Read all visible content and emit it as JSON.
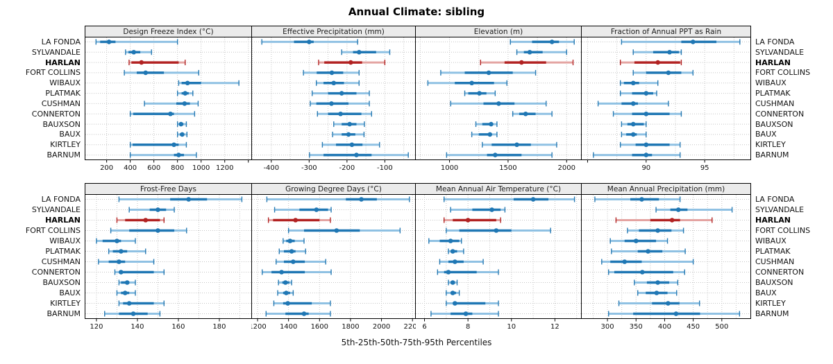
{
  "title": "Annual Climate: sibling",
  "caption": "5th-25th-50th-75th-95th Percentiles",
  "percentiles": [
    5,
    25,
    50,
    75,
    95
  ],
  "stations": [
    "LA FONDA",
    "SYLVANDALE",
    "HARLAN",
    "FORT COLLINS",
    "WIBAUX",
    "PLATMAK",
    "CUSHMAN",
    "CONNERTON",
    "BAUXSON",
    "BAUX",
    "KIRTLEY",
    "BARNUM"
  ],
  "highlight_station": "HARLAN",
  "colors": {
    "blue_dark": "#1f77b4",
    "blue_cap": "#2679b2",
    "blue_light": "#8fc1e3",
    "red_dark": "#b22222",
    "red_cap": "#b22222",
    "red_light": "#e4a3a1",
    "grid": "#c4c4c4",
    "header_bg": "#ebebeb",
    "border": "#000000",
    "text": "#111111"
  },
  "chart_data": [
    {
      "type": "percentile-dotplot",
      "panel": "Design Freeze Index (°C)",
      "xlim": [
        20,
        1425
      ],
      "ticks": [
        200,
        400,
        600,
        800,
        1000,
        1200
      ],
      "tick_extra": [
        1400
      ],
      "grid": [
        200,
        400,
        600,
        800,
        1000,
        1200,
        1400
      ],
      "values": [
        [
          110,
          145,
          220,
          275,
          800
        ],
        [
          360,
          385,
          430,
          485,
          580
        ],
        [
          390,
          410,
          495,
          810,
          865
        ],
        [
          350,
          455,
          530,
          685,
          980
        ],
        [
          810,
          835,
          885,
          1000,
          1320
        ],
        [
          800,
          835,
          865,
          895,
          930
        ],
        [
          520,
          790,
          860,
          905,
          975
        ],
        [
          400,
          425,
          740,
          770,
          945
        ],
        [
          800,
          815,
          830,
          850,
          875
        ],
        [
          800,
          820,
          840,
          855,
          880
        ],
        [
          400,
          420,
          770,
          810,
          875
        ],
        [
          400,
          770,
          810,
          855,
          960
        ]
      ]
    },
    {
      "type": "percentile-dotplot",
      "panel": "Effective Precipitation (mm)",
      "xlim": [
        -451,
        -20
      ],
      "ticks": [
        -400,
        -300,
        -200,
        -100
      ],
      "tick_extra": [],
      "grid": [
        -450,
        -400,
        -350,
        -300,
        -250,
        -200,
        -150,
        -100,
        -50
      ],
      "values": [
        [
          -425,
          -340,
          -300,
          -288,
          -172
        ],
        [
          -214,
          -184,
          -168,
          -123,
          -87
        ],
        [
          -275,
          -260,
          -190,
          -160,
          -100
        ],
        [
          -315,
          -280,
          -240,
          -210,
          -168
        ],
        [
          -281,
          -262,
          -235,
          -208,
          -168
        ],
        [
          -292,
          -250,
          -214,
          -175,
          -141
        ],
        [
          -297,
          -281,
          -241,
          -196,
          -141
        ],
        [
          -278,
          -250,
          -217,
          -162,
          -135
        ],
        [
          -235,
          -214,
          -193,
          -175,
          -154
        ],
        [
          -238,
          -214,
          -196,
          -178,
          -155
        ],
        [
          -265,
          -229,
          -187,
          -159,
          -114
        ],
        [
          -299,
          -262,
          -175,
          -135,
          -38
        ]
      ]
    },
    {
      "type": "percentile-dotplot",
      "panel": "Elevation (m)",
      "xlim": [
        712,
        2123
      ],
      "ticks": [
        1000,
        1500,
        2000
      ],
      "tick_extra": [],
      "grid": [
        750,
        1000,
        1250,
        1500,
        1750,
        2000
      ],
      "values": [
        [
          1520,
          1705,
          1875,
          1935,
          2065
        ],
        [
          1575,
          1635,
          1685,
          1795,
          2000
        ],
        [
          1265,
          1470,
          1615,
          1825,
          2055
        ],
        [
          925,
          1130,
          1335,
          1540,
          1735
        ],
        [
          815,
          1045,
          1190,
          1380,
          1490
        ],
        [
          1130,
          1160,
          1255,
          1315,
          1390
        ],
        [
          1010,
          1290,
          1420,
          1555,
          1825
        ],
        [
          1540,
          1595,
          1650,
          1735,
          1875
        ],
        [
          1225,
          1280,
          1355,
          1370,
          1405
        ],
        [
          1190,
          1250,
          1345,
          1360,
          1405
        ],
        [
          1280,
          1360,
          1575,
          1695,
          1915
        ],
        [
          975,
          1320,
          1390,
          1615,
          1875
        ]
      ]
    },
    {
      "type": "percentile-dotplot",
      "panel": "Fraction of Annual PPT as Rain",
      "xlim": [
        84.5,
        98.9
      ],
      "ticks": [
        90,
        95
      ],
      "tick_extra": [
        85
      ],
      "grid": [
        85,
        87.5,
        90,
        92.5,
        95,
        97.5
      ],
      "values": [
        [
          87.9,
          93.0,
          94.0,
          96.0,
          98.0
        ],
        [
          88.9,
          90.6,
          92.0,
          92.8,
          93.0
        ],
        [
          87.8,
          89.0,
          91.0,
          92.9,
          93.0
        ],
        [
          88.9,
          90.0,
          91.9,
          93.0,
          94.0
        ],
        [
          87.8,
          88.1,
          88.9,
          89.4,
          91.0
        ],
        [
          87.8,
          88.8,
          90.0,
          90.6,
          90.9
        ],
        [
          85.9,
          87.9,
          88.9,
          89.3,
          91.9
        ],
        [
          87.2,
          88.8,
          90.0,
          92.0,
          93.0
        ],
        [
          87.9,
          88.4,
          88.9,
          89.8,
          90.0
        ],
        [
          87.9,
          88.3,
          88.9,
          89.2,
          90.0
        ],
        [
          87.8,
          89.1,
          90.0,
          92.0,
          92.9
        ],
        [
          85.5,
          88.8,
          90.0,
          90.5,
          92.9
        ]
      ]
    },
    {
      "type": "percentile-dotplot",
      "panel": "Frost-Free Days",
      "xlim": [
        114.6,
        195.6
      ],
      "ticks": [
        120,
        140,
        160,
        180
      ],
      "tick_extra": [],
      "grid": [
        120,
        130,
        140,
        150,
        160,
        170,
        180,
        190
      ],
      "values": [
        [
          131,
          156,
          165,
          174,
          191
        ],
        [
          136,
          146,
          150,
          154,
          158
        ],
        [
          130,
          134,
          144,
          151,
          153
        ],
        [
          127,
          136,
          150,
          158,
          164
        ],
        [
          120,
          123,
          130,
          132,
          139
        ],
        [
          126,
          128,
          132,
          135,
          144
        ],
        [
          121,
          126,
          131,
          134,
          148
        ],
        [
          129,
          131,
          132,
          148,
          153
        ],
        [
          131,
          132,
          135,
          136,
          139
        ],
        [
          130,
          132,
          134,
          136,
          139
        ],
        [
          131,
          133,
          136,
          148,
          153
        ],
        [
          124,
          131,
          138,
          145,
          151
        ]
      ]
    },
    {
      "type": "percentile-dotplot",
      "panel": "Growing Degree Days (°C)",
      "xlim": [
        1164,
        2217
      ],
      "ticks": [
        1200,
        1400,
        1600,
        1800,
        2000,
        2200
      ],
      "tick_extra": [],
      "grid": [
        1200,
        1400,
        1600,
        1800,
        2000,
        2200
      ],
      "values": [
        [
          1260,
          1770,
          1870,
          1970,
          2180
        ],
        [
          1310,
          1470,
          1580,
          1655,
          1675
        ],
        [
          1270,
          1300,
          1445,
          1600,
          1670
        ],
        [
          1400,
          1500,
          1710,
          1860,
          2120
        ],
        [
          1365,
          1385,
          1410,
          1440,
          1500
        ],
        [
          1340,
          1370,
          1420,
          1445,
          1510
        ],
        [
          1320,
          1370,
          1430,
          1505,
          1640
        ],
        [
          1230,
          1290,
          1355,
          1505,
          1675
        ],
        [
          1335,
          1360,
          1380,
          1405,
          1420
        ],
        [
          1330,
          1365,
          1385,
          1410,
          1430
        ],
        [
          1305,
          1365,
          1395,
          1550,
          1670
        ],
        [
          1255,
          1380,
          1500,
          1530,
          1670
        ]
      ]
    },
    {
      "type": "percentile-dotplot",
      "panel": "Mean Annual Air Temperature (°C)",
      "xlim": [
        5.6,
        13.2
      ],
      "ticks": [
        6,
        8,
        10,
        12
      ],
      "tick_extra": [],
      "grid": [
        6,
        7,
        8,
        9,
        10,
        11,
        12,
        13
      ],
      "values": [
        [
          6.9,
          10.1,
          11.0,
          11.7,
          12.9
        ],
        [
          7.2,
          8.2,
          9.1,
          9.5,
          9.7
        ],
        [
          6.9,
          7.3,
          8.0,
          9.3,
          9.5
        ],
        [
          7.0,
          7.6,
          9.3,
          10.0,
          11.8
        ],
        [
          6.2,
          6.7,
          7.2,
          7.6,
          7.7
        ],
        [
          7.1,
          7.2,
          7.3,
          7.5,
          7.8
        ],
        [
          6.7,
          7.1,
          7.4,
          7.8,
          8.7
        ],
        [
          6.6,
          6.9,
          7.1,
          8.4,
          9.4
        ],
        [
          7.1,
          7.2,
          7.3,
          7.4,
          7.5
        ],
        [
          7.0,
          7.2,
          7.3,
          7.45,
          7.6
        ],
        [
          7.0,
          7.3,
          7.4,
          8.8,
          9.4
        ],
        [
          6.3,
          7.2,
          7.9,
          8.2,
          9.4
        ]
      ]
    },
    {
      "type": "percentile-dotplot",
      "panel": "Mean Annual Precipitation (mm)",
      "xlim": [
        255,
        550
      ],
      "ticks": [
        300,
        350,
        400,
        450,
        500
      ],
      "tick_extra": [],
      "grid": [
        275,
        300,
        325,
        350,
        375,
        400,
        425,
        450,
        475,
        500,
        525
      ],
      "values": [
        [
          278,
          340,
          360,
          390,
          427
        ],
        [
          385,
          410,
          424,
          440,
          518
        ],
        [
          315,
          375,
          413,
          427,
          483
        ],
        [
          335,
          355,
          388,
          412,
          433
        ],
        [
          305,
          330,
          350,
          385,
          405
        ],
        [
          307,
          353,
          371,
          396,
          436
        ],
        [
          290,
          305,
          330,
          360,
          450
        ],
        [
          302,
          312,
          361,
          415,
          435
        ],
        [
          347,
          369,
          388,
          408,
          423
        ],
        [
          353,
          367,
          386,
          405,
          421
        ],
        [
          320,
          378,
          406,
          426,
          461
        ],
        [
          302,
          345,
          420,
          462,
          531
        ]
      ]
    }
  ]
}
